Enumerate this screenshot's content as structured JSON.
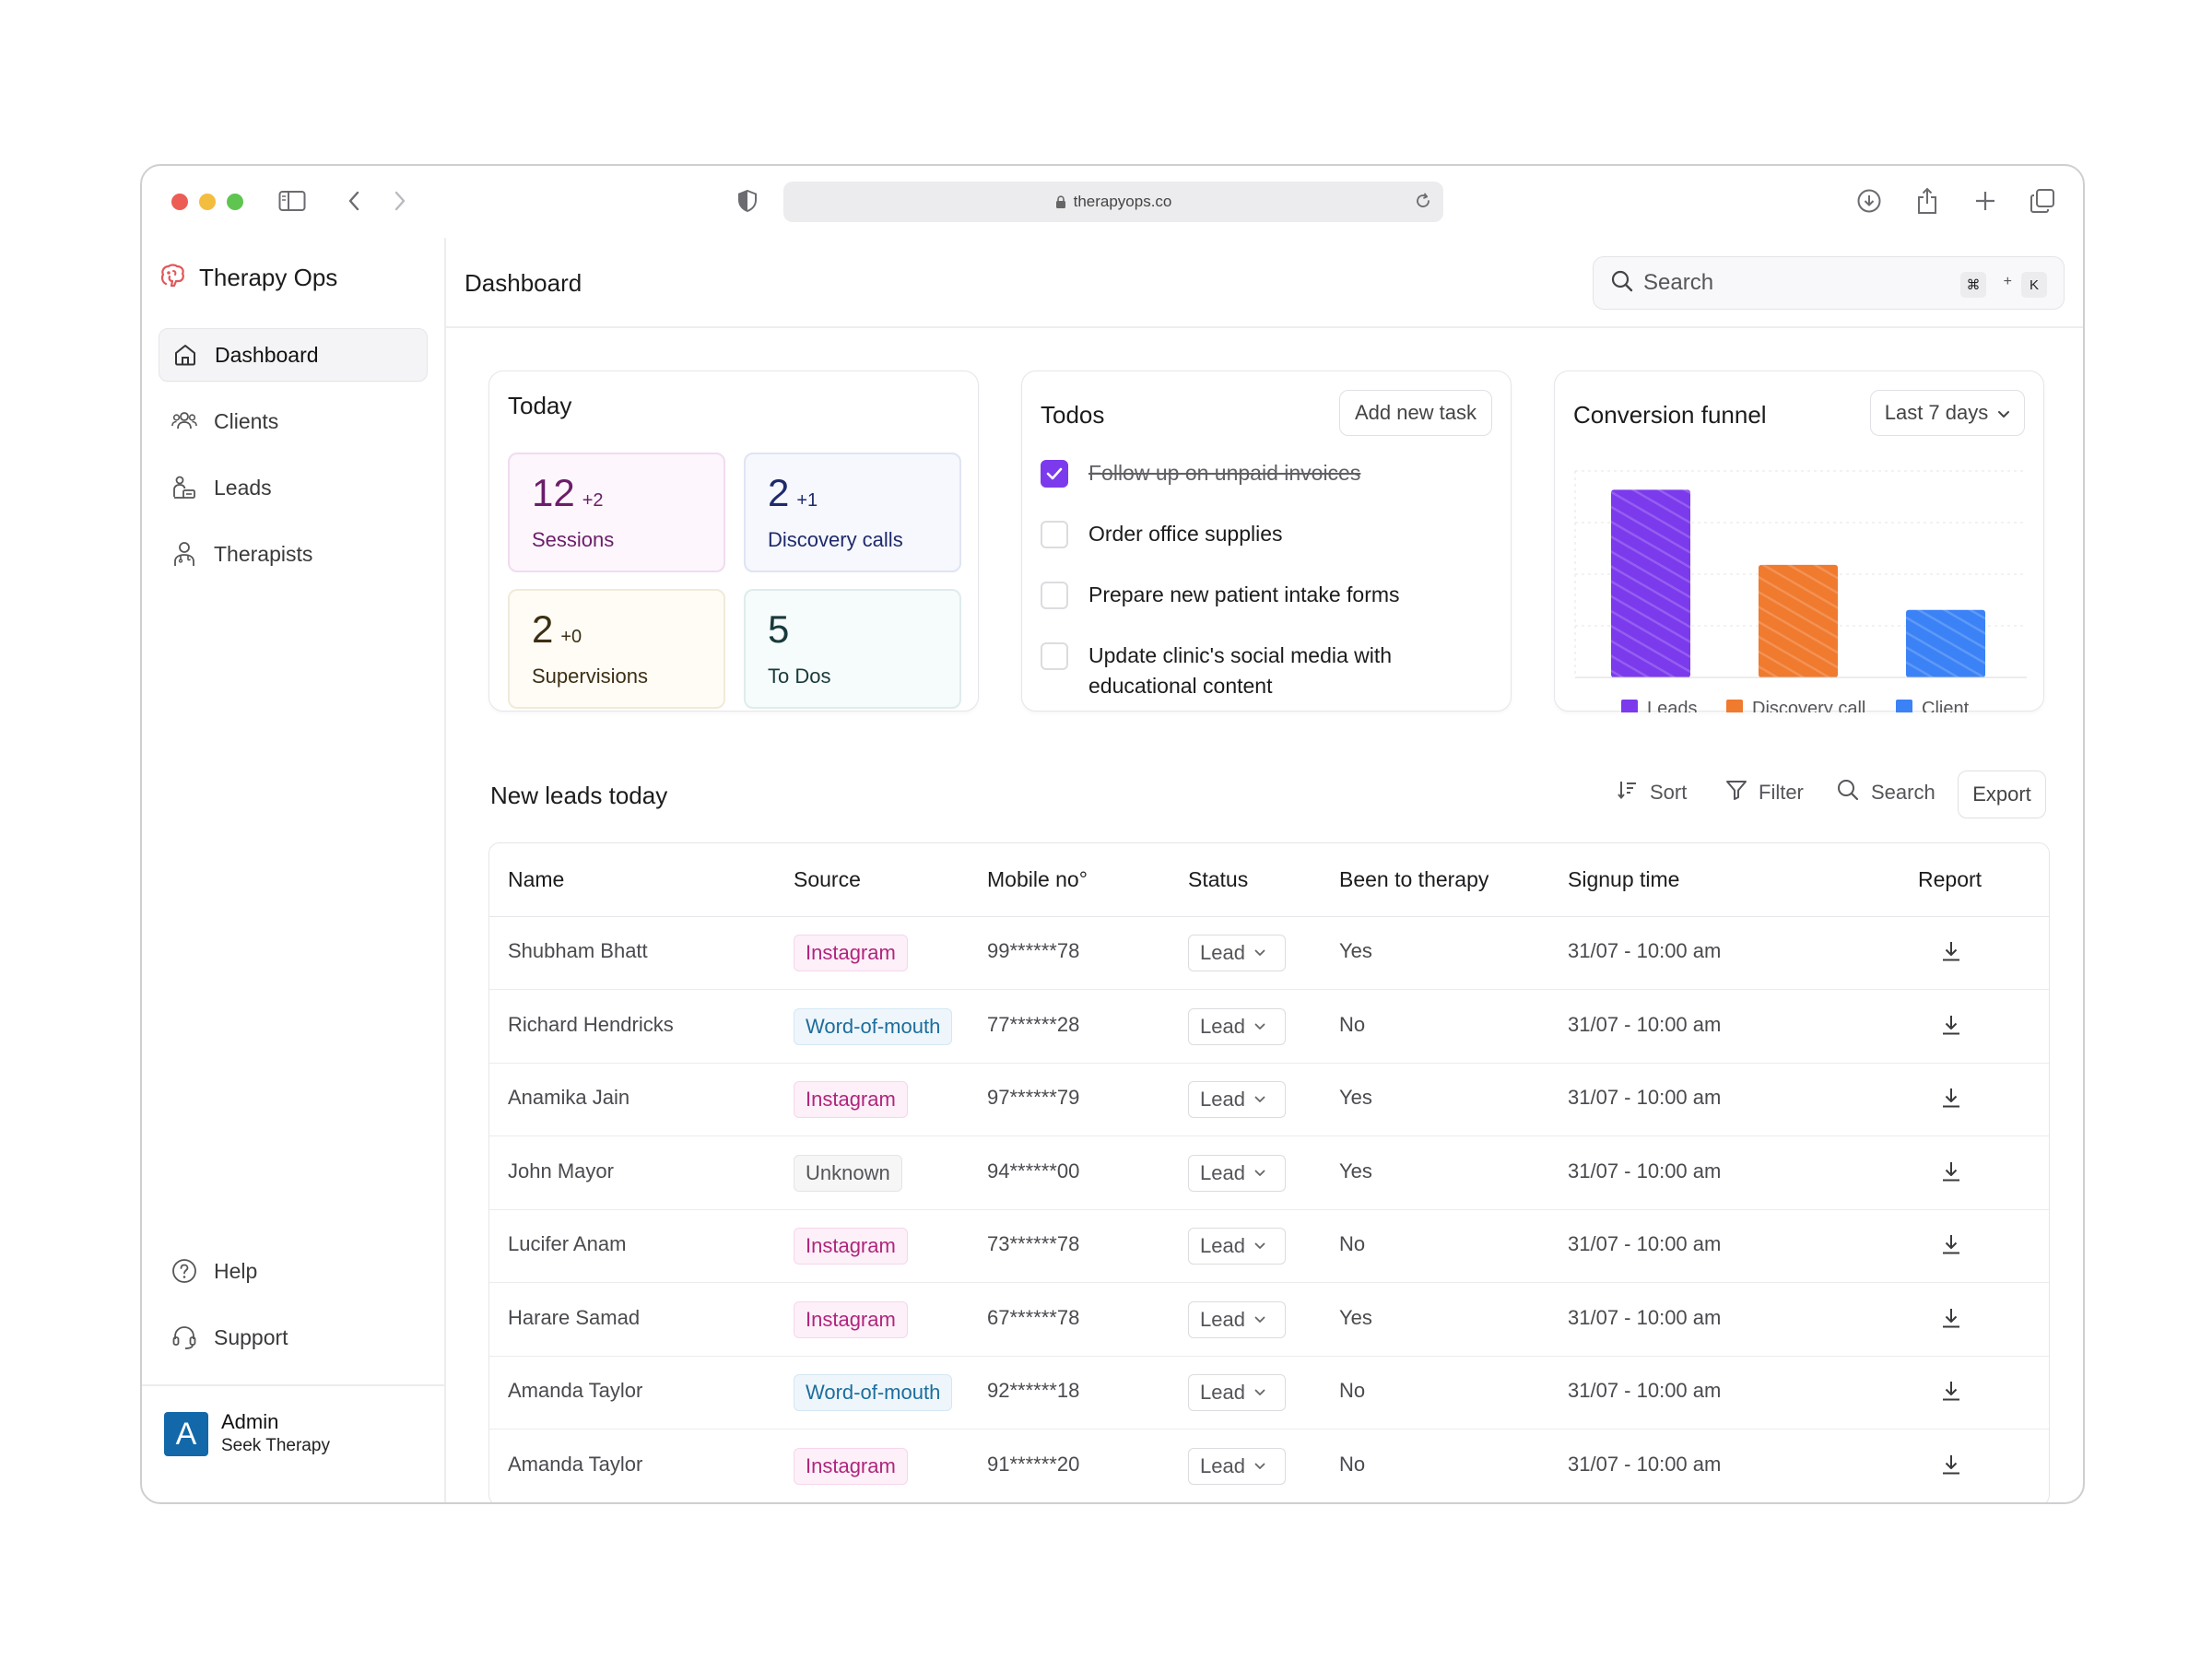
{
  "browser": {
    "url": "therapyops.co"
  },
  "app": {
    "name": "Therapy Ops"
  },
  "sidebar": {
    "items": [
      {
        "label": "Dashboard",
        "icon": "home-icon",
        "active": true
      },
      {
        "label": "Clients",
        "icon": "users-icon"
      },
      {
        "label": "Leads",
        "icon": "leads-icon"
      },
      {
        "label": "Therapists",
        "icon": "therapist-icon"
      }
    ],
    "bottom": [
      {
        "label": "Help",
        "icon": "help-icon"
      },
      {
        "label": "Support",
        "icon": "headset-icon"
      }
    ],
    "profile": {
      "initial": "A",
      "name": "Admin",
      "org": "Seek Therapy"
    }
  },
  "header": {
    "title": "Dashboard",
    "search_placeholder": "Search",
    "shortcut_cmd": "⌘",
    "shortcut_plus": "+",
    "shortcut_key": "K"
  },
  "today": {
    "title": "Today",
    "stats": [
      {
        "value": "12",
        "delta": "+2",
        "label": "Sessions",
        "color": "#6b1d6a",
        "bg": "#fdf6fc",
        "border": "#f0dcef"
      },
      {
        "value": "2",
        "delta": "+1",
        "label": "Discovery calls",
        "color": "#1f2a6b",
        "bg": "#f6f8fe",
        "border": "#dfe4f4"
      },
      {
        "value": "2",
        "delta": "+0",
        "label": "Supervisions",
        "color": "#3d2f14",
        "bg": "#fffcf6",
        "border": "#f1ead9"
      },
      {
        "value": "5",
        "delta": "",
        "label": "To Dos",
        "color": "#183a3a",
        "bg": "#f6fbfb",
        "border": "#dfeceb"
      }
    ]
  },
  "todos": {
    "title": "Todos",
    "add_label": "Add new task",
    "items": [
      {
        "text": "Follow up on unpaid invoices",
        "done": true
      },
      {
        "text": "Order office supplies",
        "done": false
      },
      {
        "text": "Prepare new patient intake forms",
        "done": false
      },
      {
        "text": "Update clinic's social media with educational content",
        "done": false
      }
    ]
  },
  "funnel": {
    "title": "Conversion funnel",
    "range_label": "Last 7 days"
  },
  "chart_data": {
    "type": "bar",
    "categories": [
      "Leads",
      "Discovery call",
      "Client"
    ],
    "values": [
      100,
      60,
      36
    ],
    "colors": [
      "#7c3aed",
      "#f07a2e",
      "#3b82f6"
    ],
    "ylim": [
      0,
      110
    ],
    "grid": true,
    "legend": "bottom"
  },
  "leads": {
    "title": "New leads today",
    "toolbar": {
      "sort": "Sort",
      "filter": "Filter",
      "search": "Search",
      "export": "Export"
    },
    "columns": [
      "Name",
      "Source",
      "Mobile no°",
      "Status",
      "Been to therapy",
      "Signup time",
      "Report"
    ],
    "rows": [
      {
        "name": "Shubham Bhatt",
        "source": "Instagram",
        "mobile": "99******78",
        "status": "Lead",
        "therapy": "Yes",
        "signup": "31/07 - 10:00 am"
      },
      {
        "name": "Richard Hendricks",
        "source": "Word-of-mouth",
        "mobile": "77******28",
        "status": "Lead",
        "therapy": "No",
        "signup": "31/07 - 10:00 am"
      },
      {
        "name": "Anamika Jain",
        "source": "Instagram",
        "mobile": "97******79",
        "status": "Lead",
        "therapy": "Yes",
        "signup": "31/07 - 10:00 am"
      },
      {
        "name": "John Mayor",
        "source": "Unknown",
        "mobile": "94******00",
        "status": "Lead",
        "therapy": "Yes",
        "signup": "31/07 - 10:00 am"
      },
      {
        "name": "Lucifer Anam",
        "source": "Instagram",
        "mobile": "73******78",
        "status": "Lead",
        "therapy": "No",
        "signup": "31/07 - 10:00 am"
      },
      {
        "name": "Harare Samad",
        "source": "Instagram",
        "mobile": "67******78",
        "status": "Lead",
        "therapy": "Yes",
        "signup": "31/07 - 10:00 am"
      },
      {
        "name": "Amanda Taylor",
        "source": "Word-of-mouth",
        "mobile": "92******18",
        "status": "Lead",
        "therapy": "No",
        "signup": "31/07 - 10:00 am"
      },
      {
        "name": "Amanda Taylor",
        "source": "Instagram",
        "mobile": "91******20",
        "status": "Lead",
        "therapy": "No",
        "signup": "31/07 - 10:00 am"
      }
    ]
  }
}
